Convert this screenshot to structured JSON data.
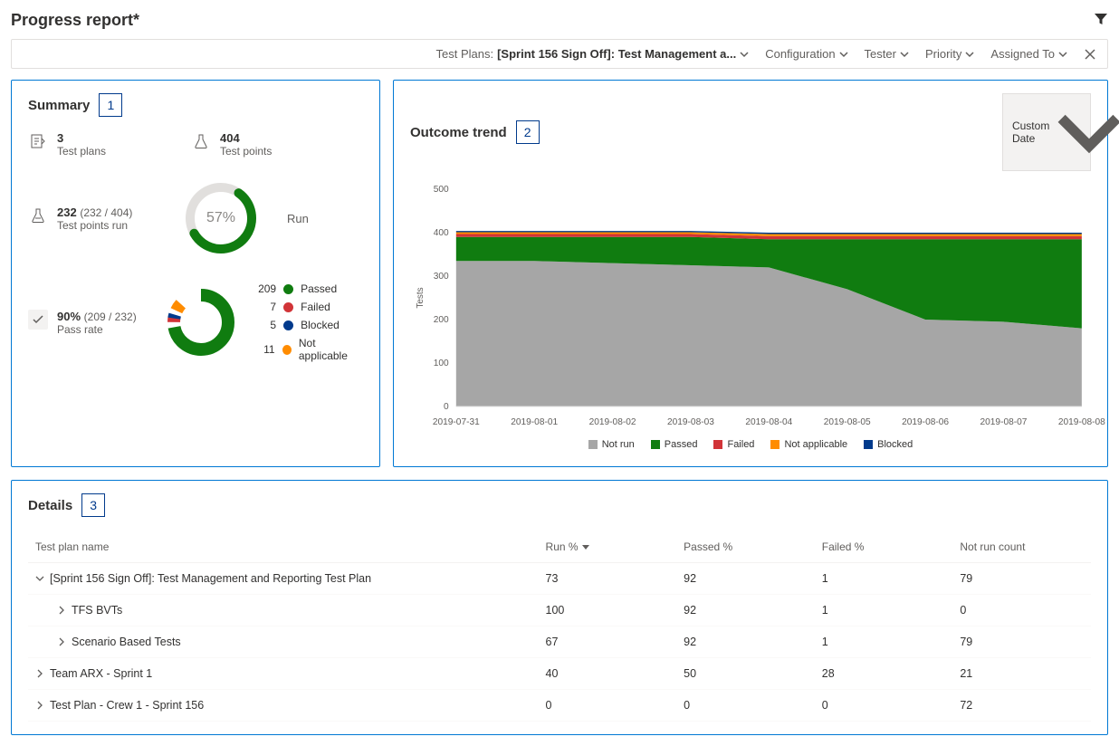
{
  "page_title": "Progress report*",
  "toolbar": {
    "test_plans_label": "Test Plans:",
    "test_plans_value": "[Sprint 156 Sign Off]: Test Management a...",
    "filters": [
      "Configuration",
      "Tester",
      "Priority",
      "Assigned To"
    ]
  },
  "summary": {
    "title": "Summary",
    "callout": "1",
    "test_plans": {
      "value": "3",
      "label": "Test plans"
    },
    "test_points": {
      "value": "404",
      "label": "Test points"
    },
    "test_points_run": {
      "value": "232",
      "sub": "(232 / 404)",
      "label": "Test points run"
    },
    "run_pct_text": "57%",
    "run_pct_value": 57,
    "run_label": "Run",
    "run_donut": {
      "fg_color": "#107c10",
      "bg_color": "#e1dfdd",
      "thickness": 10
    },
    "pass_rate": {
      "value": "90%",
      "sub": "(209 / 232)",
      "label": "Pass rate"
    },
    "pass_donut_thickness": 14,
    "outcome_legend": [
      {
        "count": "209",
        "label": "Passed",
        "color": "#107c10",
        "frac": 0.901
      },
      {
        "count": "7",
        "label": "Failed",
        "color": "#d13438",
        "frac": 0.03
      },
      {
        "count": "5",
        "label": "Blocked",
        "color": "#003a8c",
        "frac": 0.022
      },
      {
        "count": "11",
        "label": "Not applicable",
        "color": "#ff8c00",
        "frac": 0.047
      }
    ]
  },
  "trend": {
    "title": "Outcome trend",
    "callout": "2",
    "custom_date_label": "Custom Date",
    "y_label": "Tests",
    "y_max": 500,
    "y_tick_step": 100,
    "x_labels": [
      "2019-07-31",
      "2019-08-01",
      "2019-08-02",
      "2019-08-03",
      "2019-08-04",
      "2019-08-05",
      "2019-08-06",
      "2019-08-07",
      "2019-08-08"
    ],
    "colors": {
      "not_run": "#a6a6a6",
      "passed": "#107c10",
      "failed": "#d13438",
      "not_applicable": "#ff8c00",
      "blocked": "#003a8c",
      "grid": "#e0e0e0",
      "axis_text": "#605e5c"
    },
    "series": {
      "not_run": [
        335,
        335,
        330,
        325,
        320,
        270,
        200,
        195,
        180
      ],
      "passed": [
        55,
        55,
        60,
        65,
        65,
        115,
        185,
        190,
        205
      ],
      "failed": [
        7,
        7,
        7,
        7,
        7,
        7,
        7,
        7,
        7
      ],
      "not_applicable": [
        4,
        4,
        4,
        4,
        5,
        5,
        5,
        5,
        5
      ],
      "blocked": [
        3,
        3,
        3,
        3,
        3,
        3,
        3,
        3,
        3
      ]
    },
    "legend": [
      {
        "label": "Not run",
        "color": "#a6a6a6"
      },
      {
        "label": "Passed",
        "color": "#107c10"
      },
      {
        "label": "Failed",
        "color": "#d13438"
      },
      {
        "label": "Not applicable",
        "color": "#ff8c00"
      },
      {
        "label": "Blocked",
        "color": "#003a8c"
      }
    ]
  },
  "details": {
    "title": "Details",
    "callout": "3",
    "columns": [
      "Test plan name",
      "Run %",
      "Passed %",
      "Failed %",
      "Not run count"
    ],
    "sort_col_index": 1,
    "rows": [
      {
        "indent": 0,
        "expanded": true,
        "name": "[Sprint 156 Sign Off]: Test Management and Reporting Test Plan",
        "run": "73",
        "passed": "92",
        "failed": "1",
        "notrun": "79"
      },
      {
        "indent": 1,
        "expanded": false,
        "name": "TFS BVTs",
        "run": "100",
        "passed": "92",
        "failed": "1",
        "notrun": "0"
      },
      {
        "indent": 1,
        "expanded": false,
        "name": "Scenario Based Tests",
        "run": "67",
        "passed": "92",
        "failed": "1",
        "notrun": "79"
      },
      {
        "indent": 0,
        "expanded": false,
        "name": "Team ARX - Sprint 1",
        "run": "40",
        "passed": "50",
        "failed": "28",
        "notrun": "21"
      },
      {
        "indent": 0,
        "expanded": false,
        "name": "Test Plan - Crew 1 - Sprint 156",
        "run": "0",
        "passed": "0",
        "failed": "0",
        "notrun": "72"
      }
    ]
  }
}
